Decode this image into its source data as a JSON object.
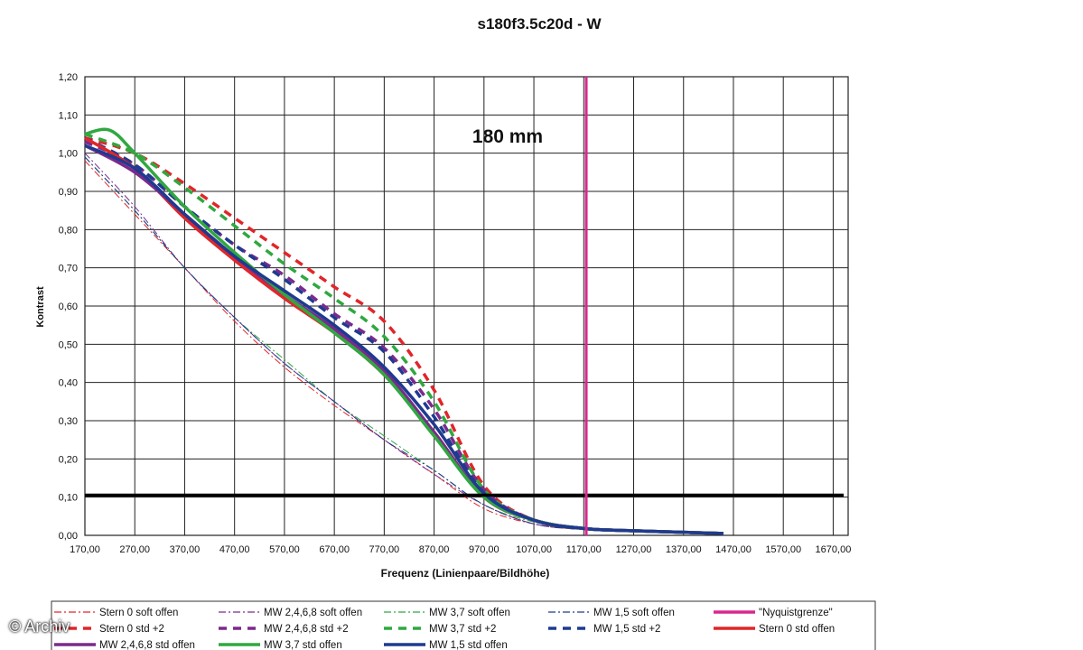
{
  "watermark": "© Archiv",
  "chart_data": {
    "type": "line",
    "title": "s180f3.5c20d - W",
    "annotation": "180 mm",
    "xlabel": "Frequenz (Linienpaare/Bildhöhe)",
    "ylabel": "Kontrast",
    "xlim": [
      170,
      1700
    ],
    "ylim": [
      0,
      1.2
    ],
    "x_ticks": [
      "170,00",
      "270,00",
      "370,00",
      "470,00",
      "570,00",
      "670,00",
      "770,00",
      "870,00",
      "970,00",
      "1070,00",
      "1170,00",
      "1270,00",
      "1370,00",
      "1470,00",
      "1570,00",
      "1670,00"
    ],
    "y_ticks": [
      "0,00",
      "0,10",
      "0,20",
      "0,30",
      "0,40",
      "0,50",
      "0,60",
      "0,70",
      "0,80",
      "0,90",
      "1,00",
      "1,10",
      "1,20"
    ],
    "grid": true,
    "nyquist_x": 1175,
    "threshold_y": 0.105,
    "colors": {
      "red": "#e0262a",
      "purple": "#7a2a8c",
      "green": "#2fa840",
      "blue": "#1f3a8f",
      "magenta": "#d8278e",
      "black": "#000000"
    },
    "series": [
      {
        "name": "Stern 0 soft offen",
        "color": "red",
        "style": "dashdot",
        "width": 1,
        "x": [
          170,
          270,
          370,
          470,
          570,
          670,
          770,
          870,
          970,
          1070,
          1170,
          1270,
          1370,
          1450
        ],
        "y": [
          0.98,
          0.84,
          0.7,
          0.56,
          0.44,
          0.34,
          0.25,
          0.16,
          0.07,
          0.03,
          0.015,
          0.01,
          0.008,
          0.005
        ]
      },
      {
        "name": "MW 2,4,6,8 soft offen",
        "color": "purple",
        "style": "dashdot",
        "width": 1,
        "x": [
          170,
          270,
          370,
          470,
          570,
          670,
          770,
          870,
          970,
          1070,
          1170,
          1270,
          1370,
          1450
        ],
        "y": [
          1.0,
          0.86,
          0.7,
          0.57,
          0.45,
          0.35,
          0.25,
          0.16,
          0.08,
          0.03,
          0.015,
          0.01,
          0.008,
          0.005
        ]
      },
      {
        "name": "MW 3,7 soft offen",
        "color": "green",
        "style": "dashdot",
        "width": 1,
        "x": [
          170,
          270,
          370,
          470,
          570,
          670,
          770,
          870,
          970,
          1070,
          1170,
          1270,
          1370,
          1450
        ],
        "y": [
          0.99,
          0.85,
          0.7,
          0.57,
          0.46,
          0.35,
          0.26,
          0.17,
          0.08,
          0.035,
          0.015,
          0.01,
          0.008,
          0.005
        ]
      },
      {
        "name": "MW 1,5 soft offen",
        "color": "blue",
        "style": "dashdot",
        "width": 1,
        "x": [
          170,
          270,
          370,
          470,
          570,
          670,
          770,
          870,
          970,
          1070,
          1170,
          1270,
          1370,
          1450
        ],
        "y": [
          0.99,
          0.85,
          0.7,
          0.57,
          0.45,
          0.35,
          0.25,
          0.17,
          0.08,
          0.03,
          0.015,
          0.01,
          0.008,
          0.005
        ]
      },
      {
        "name": "\"Nyquistgrenze\"",
        "color": "magenta",
        "style": "nyquist",
        "width": 3,
        "x": [],
        "y": []
      },
      {
        "name": "Stern 0 std +2",
        "color": "red",
        "style": "dash",
        "width": 3.5,
        "x": [
          170,
          270,
          370,
          470,
          570,
          670,
          770,
          870,
          970,
          1070,
          1170,
          1270,
          1370,
          1450
        ],
        "y": [
          1.04,
          1.0,
          0.92,
          0.83,
          0.74,
          0.65,
          0.56,
          0.38,
          0.13,
          0.04,
          0.018,
          0.012,
          0.008,
          0.005
        ]
      },
      {
        "name": "MW 2,4,6,8 std +2",
        "color": "purple",
        "style": "dash",
        "width": 3.5,
        "x": [
          170,
          270,
          370,
          470,
          570,
          670,
          770,
          870,
          970,
          1070,
          1170,
          1270,
          1370,
          1450
        ],
        "y": [
          1.03,
          0.97,
          0.86,
          0.76,
          0.68,
          0.58,
          0.49,
          0.33,
          0.12,
          0.04,
          0.018,
          0.012,
          0.008,
          0.005
        ]
      },
      {
        "name": "MW 3,7 std +2",
        "color": "green",
        "style": "dash",
        "width": 3.5,
        "x": [
          170,
          270,
          370,
          470,
          570,
          670,
          770,
          870,
          970,
          1070,
          1170,
          1270,
          1370,
          1450
        ],
        "y": [
          1.05,
          1.0,
          0.91,
          0.81,
          0.71,
          0.62,
          0.52,
          0.35,
          0.12,
          0.04,
          0.018,
          0.012,
          0.008,
          0.005
        ]
      },
      {
        "name": "MW 1,5 std +2",
        "color": "blue",
        "style": "dash",
        "width": 3.5,
        "x": [
          170,
          270,
          370,
          470,
          570,
          670,
          770,
          870,
          970,
          1070,
          1170,
          1270,
          1370,
          1450
        ],
        "y": [
          1.04,
          0.97,
          0.86,
          0.76,
          0.67,
          0.57,
          0.48,
          0.31,
          0.11,
          0.04,
          0.018,
          0.012,
          0.008,
          0.005
        ]
      },
      {
        "name": "Stern 0 std offen",
        "color": "red",
        "style": "solid",
        "width": 3.5,
        "x": [
          170,
          270,
          370,
          470,
          570,
          670,
          770,
          870,
          970,
          1070,
          1170,
          1270,
          1370,
          1450
        ],
        "y": [
          1.04,
          0.96,
          0.83,
          0.72,
          0.62,
          0.53,
          0.42,
          0.27,
          0.1,
          0.04,
          0.018,
          0.012,
          0.008,
          0.005
        ]
      },
      {
        "name": "MW 2,4,6,8 std offen",
        "color": "purple",
        "style": "solid",
        "width": 3.5,
        "x": [
          170,
          270,
          370,
          470,
          570,
          670,
          770,
          870,
          970,
          1070,
          1170,
          1270,
          1370,
          1450
        ],
        "y": [
          1.02,
          0.95,
          0.84,
          0.73,
          0.63,
          0.54,
          0.43,
          0.27,
          0.1,
          0.04,
          0.018,
          0.012,
          0.008,
          0.005
        ]
      },
      {
        "name": "MW 3,7 std offen",
        "color": "green",
        "style": "solid",
        "width": 3.5,
        "x": [
          170,
          220,
          270,
          370,
          470,
          570,
          670,
          770,
          870,
          970,
          1070,
          1170,
          1270,
          1370,
          1450
        ],
        "y": [
          1.05,
          1.06,
          1.0,
          0.86,
          0.74,
          0.63,
          0.53,
          0.42,
          0.26,
          0.1,
          0.04,
          0.018,
          0.012,
          0.008,
          0.005
        ]
      },
      {
        "name": "MW 1,5 std offen",
        "color": "blue",
        "style": "solid",
        "width": 3.5,
        "x": [
          170,
          270,
          370,
          470,
          570,
          670,
          770,
          870,
          970,
          1070,
          1170,
          1270,
          1370,
          1450
        ],
        "y": [
          1.02,
          0.96,
          0.84,
          0.73,
          0.64,
          0.55,
          0.44,
          0.29,
          0.11,
          0.04,
          0.018,
          0.012,
          0.008,
          0.005
        ]
      }
    ]
  }
}
